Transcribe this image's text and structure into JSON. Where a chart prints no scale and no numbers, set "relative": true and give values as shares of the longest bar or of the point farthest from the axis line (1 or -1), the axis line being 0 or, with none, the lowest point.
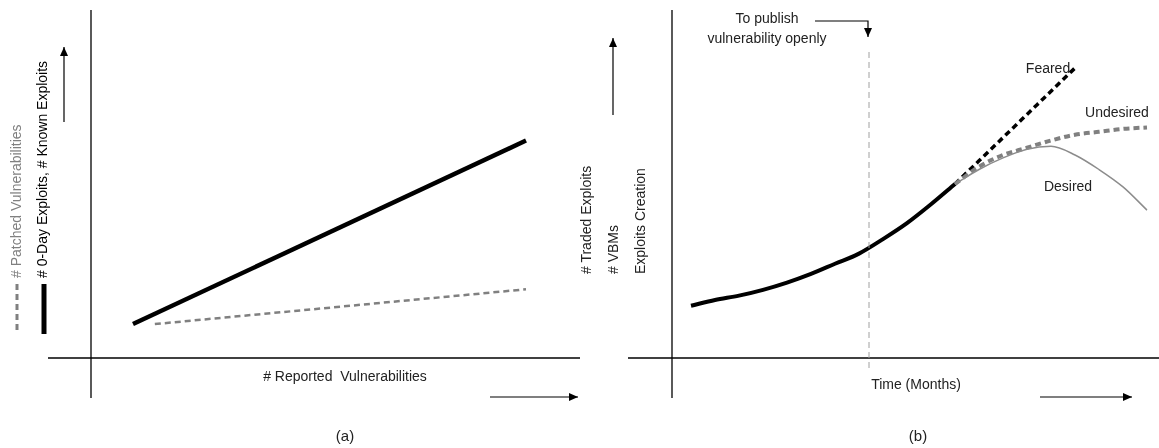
{
  "chart_data": [
    {
      "type": "line",
      "title": "(a)",
      "xlabel": "# Reported  Vulnerabilities",
      "relative": true,
      "tick_labels": false,
      "legend": "left",
      "marker": "none",
      "categories": [
        null,
        null,
        null,
        null,
        null,
        null,
        null,
        null,
        null,
        null,
        null,
        null,
        null,
        null,
        null,
        null,
        null,
        null,
        null
      ],
      "series": [
        {
          "name": "# Patched Vulnerabilities",
          "color": "#808080",
          "line_style": "dashed",
          "values": [
            null,
            0.156,
            null,
            null,
            null,
            null,
            null,
            null,
            null,
            null,
            null,
            null,
            null,
            null,
            null,
            null,
            null,
            null,
            0.316
          ]
        },
        {
          "name": "# 0-Day Exploits, # Known Exploits",
          "color": "#000000",
          "line_style": "solid",
          "values": [
            0.156,
            null,
            null,
            null,
            null,
            null,
            null,
            null,
            null,
            null,
            null,
            null,
            null,
            null,
            null,
            null,
            null,
            null,
            1
          ]
        }
      ]
    },
    {
      "type": "line",
      "title": "(b)",
      "xlabel": "Time (Months)",
      "ylabel": "# Traded Exploits\n# VBMs\nExploits Creation",
      "relative": true,
      "tick_labels": false,
      "legend": false,
      "marker": "none",
      "categories": [
        null,
        null,
        null,
        null,
        null,
        null,
        null,
        null,
        null,
        null,
        null,
        null,
        null,
        null,
        null,
        null,
        null,
        null,
        null,
        null
      ],
      "annotations": [
        "To publish vulnerability openly"
      ],
      "series": [
        {
          "color": "#000000",
          "line_style": "solid",
          "values": [
            0.18,
            0.2,
            0.215,
            0.235,
            0.26,
            0.29,
            0.325,
            0.36,
            0.41,
            0.465,
            0.53,
            0.6,
            null,
            null,
            null,
            null,
            null,
            null,
            null,
            null
          ]
        },
        {
          "name": "Feared",
          "color": "#000000",
          "line_style": "dashed",
          "values": [
            null,
            null,
            null,
            null,
            null,
            null,
            null,
            null,
            null,
            null,
            null,
            0.6,
            0.68,
            0.76,
            0.84,
            0.92,
            1,
            null,
            null,
            null
          ]
        },
        {
          "name": "Undesired",
          "color": "#808080",
          "line_style": "dashed",
          "values": [
            null,
            null,
            null,
            null,
            null,
            null,
            null,
            null,
            null,
            null,
            null,
            0.6,
            0.66,
            0.7,
            0.725,
            0.75,
            0.77,
            0.78,
            0.79,
            0.795
          ]
        },
        {
          "name": "Desired",
          "color": "#8c8c8c",
          "line_style": "solid",
          "values": [
            null,
            null,
            null,
            null,
            null,
            null,
            null,
            null,
            null,
            null,
            null,
            0.6,
            0.65,
            0.69,
            0.72,
            0.73,
            0.7,
            0.65,
            0.59,
            0.51
          ]
        }
      ]
    }
  ]
}
